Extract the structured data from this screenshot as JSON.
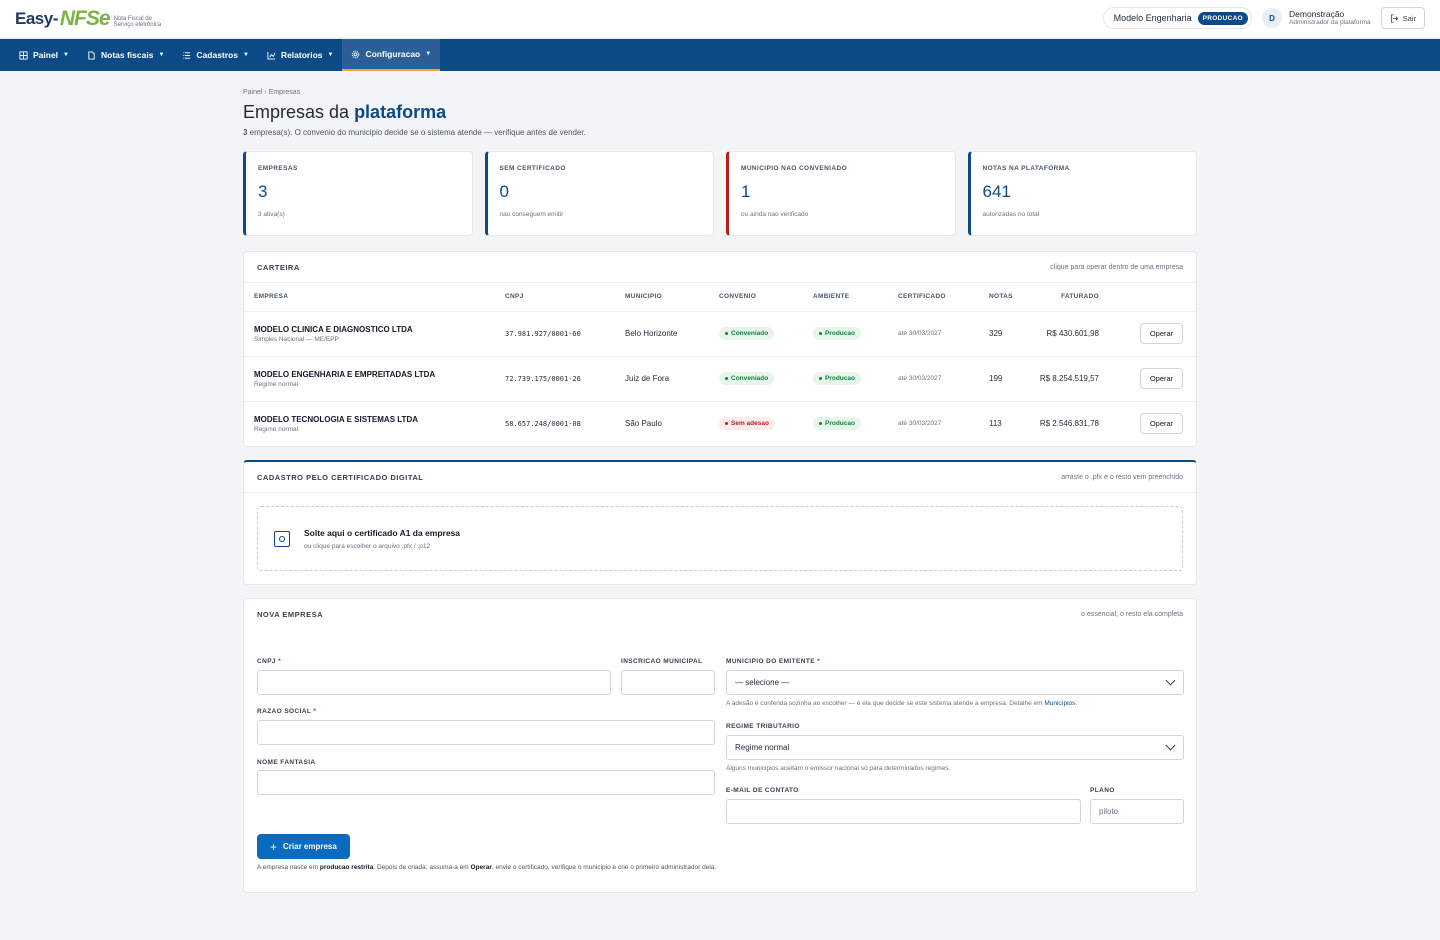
{
  "header": {
    "logo_easy": "Easy-",
    "logo_nfse": "NFSe",
    "logo_sub": "Nota Fiscal de Serviço eletrônica",
    "company_selector": "Modelo Engenharia",
    "env_badge": "PRODUCAO",
    "avatar_initial": "D",
    "user_name": "Demonstração",
    "user_role": "Administrador da plataforma",
    "logout_label": "Sair"
  },
  "nav": [
    {
      "label": "Painel",
      "icon": "grid-icon"
    },
    {
      "label": "Notas fiscais",
      "icon": "document-icon"
    },
    {
      "label": "Cadastros",
      "icon": "list-icon"
    },
    {
      "label": "Relatorios",
      "icon": "chart-icon"
    },
    {
      "label": "Configuracao",
      "icon": "gear-icon"
    }
  ],
  "breadcrumb": "Painel › Empresas",
  "page": {
    "title_prefix": "Empresas da ",
    "title_highlight": "plataforma",
    "subtitle_count": "3",
    "subtitle_text": " empresa(s). O convenio do municipio decide se o sistema atende — verifique antes de vender."
  },
  "stats": [
    {
      "label": "EMPRESAS",
      "value": "3",
      "hint": "3 ativa(s)"
    },
    {
      "label": "SEM CERTIFICADO",
      "value": "0",
      "hint": "nao conseguem emitir"
    },
    {
      "label": "MUNICIPIO NAO CONVENIADO",
      "value": "1",
      "hint": "ou ainda nao verificado"
    },
    {
      "label": "NOTAS NA PLATAFORMA",
      "value": "641",
      "hint": "autorizadas no total"
    }
  ],
  "carteira": {
    "title": "CARTEIRA",
    "note": "clique para operar dentro de uma empresa",
    "columns": [
      "EMPRESA",
      "CNPJ",
      "MUNICIPIO",
      "CONVENIO",
      "AMBIENTE",
      "CERTIFICADO",
      "NOTAS",
      "FATURADO"
    ],
    "rows": [
      {
        "name": "MODELO CLINICA E DIAGNOSTICO LTDA",
        "regime": "Simples Nacional — ME/EPP",
        "cnpj": "37.981.927/0001-60",
        "municipio": "Belo Horizonte",
        "convenio": "Conveniado",
        "ambiente": "Producao",
        "certificado": "até 30/03/2027",
        "notas": "329",
        "faturado": "R$ 430.601,98",
        "action": "Operar"
      },
      {
        "name": "MODELO ENGENHARIA E EMPREITADAS LTDA",
        "regime": "Regime normal",
        "cnpj": "72.739.175/0001-26",
        "municipio": "Juiz de Fora",
        "convenio": "Conveniado",
        "ambiente": "Producao",
        "certificado": "até 30/03/2027",
        "notas": "199",
        "faturado": "R$ 8.254.519,57",
        "action": "Operar"
      },
      {
        "name": "MODELO TECNOLOGIA E SISTEMAS LTDA",
        "regime": "Regime normal",
        "cnpj": "58.657.248/0001-08",
        "municipio": "São Paulo",
        "convenio": "Sem adesao",
        "ambiente": "Producao",
        "certificado": "até 30/03/2027",
        "notas": "113",
        "faturado": "R$ 2.546.831,78",
        "action": "Operar"
      }
    ]
  },
  "certificado": {
    "title": "CADASTRO PELO CERTIFICADO DIGITAL",
    "note": "arraste o .pfx e o resto vem preenchido",
    "drop_title": "Solte aqui o certificado A1 da empresa",
    "drop_sub": "ou clique para escolher o arquivo .pfx / .p12"
  },
  "nova_empresa": {
    "title": "NOVA EMPRESA",
    "note": "o essencial; o resto ela completa",
    "cnpj_label": "CNPJ",
    "im_label": "INSCRICAO MUNICIPAL",
    "municipio_label": "MUNICIPIO DO EMITENTE",
    "municipio_value": "— selecione —",
    "municipio_help": "A adesão é conferida sozinha ao escolher — é ela que decide se este sistema atende a empresa. Detalhe em ",
    "municipio_help_link": "Municípios",
    "razao_label": "RAZAO SOCIAL",
    "regime_label": "REGIME TRIBUTARIO",
    "regime_value": "Regime normal",
    "regime_help": "Alguns municipios aceitam o emissor nacional só para determinados regimes.",
    "fantasia_label": "NOME FANTASIA",
    "email_label": "E-MAIL DE CONTATO",
    "plano_label": "PLANO",
    "plano_placeholder": "piloto",
    "required_mark": "*",
    "submit_label": "Criar empresa",
    "foot_a": "A empresa nasce em ",
    "foot_b": "producao restrita",
    "foot_c": ". Depois de criada: assuma-a em ",
    "foot_d": "Operar",
    "foot_e": ", envie o certificado, verifique o municipio e crie o primeiro administrador dela."
  }
}
